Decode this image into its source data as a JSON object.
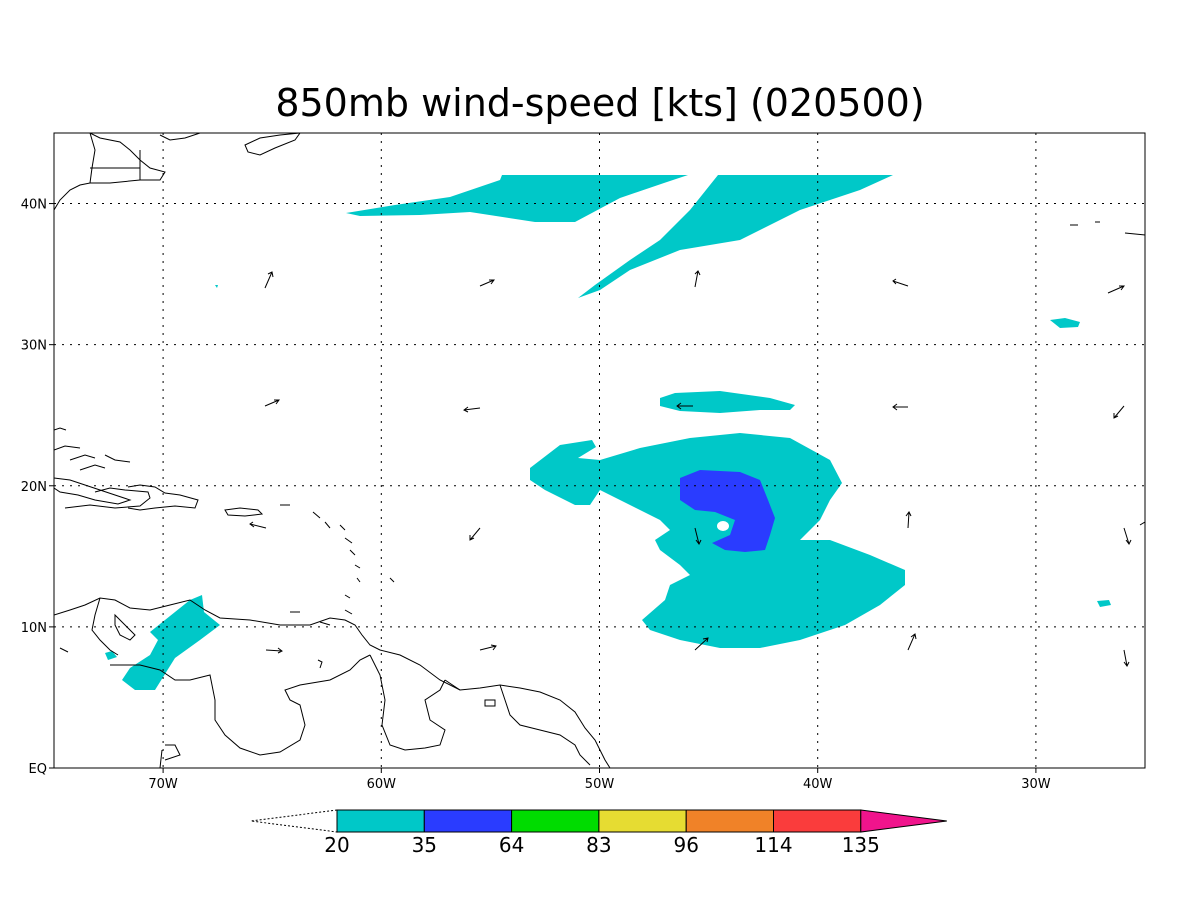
{
  "title": "850mb wind-speed [kts] (020500)",
  "map": {
    "lon_range": [
      -75,
      -25
    ],
    "lat_range": [
      0,
      45
    ],
    "lon_ticks": [
      {
        "lon": -70,
        "label": "70W"
      },
      {
        "lon": -60,
        "label": "60W"
      },
      {
        "lon": -50,
        "label": "50W"
      },
      {
        "lon": -40,
        "label": "40W"
      },
      {
        "lon": -30,
        "label": "30W"
      }
    ],
    "lat_ticks": [
      {
        "lat": 0,
        "label": "EQ"
      },
      {
        "lat": 10,
        "label": "10N"
      },
      {
        "lat": 20,
        "label": "20N"
      },
      {
        "lat": 30,
        "label": "30N"
      },
      {
        "lat": 40,
        "label": "40N"
      }
    ],
    "gridlines": true
  },
  "colorbar": {
    "colors": [
      "#ffffff",
      "#00c8c8",
      "#2a3cff",
      "#00dc00",
      "#e6dc32",
      "#f08228",
      "#fa3c3c",
      "#f0148c"
    ],
    "labels": [
      "20",
      "35",
      "64",
      "83",
      "96",
      "114",
      "135"
    ]
  }
}
